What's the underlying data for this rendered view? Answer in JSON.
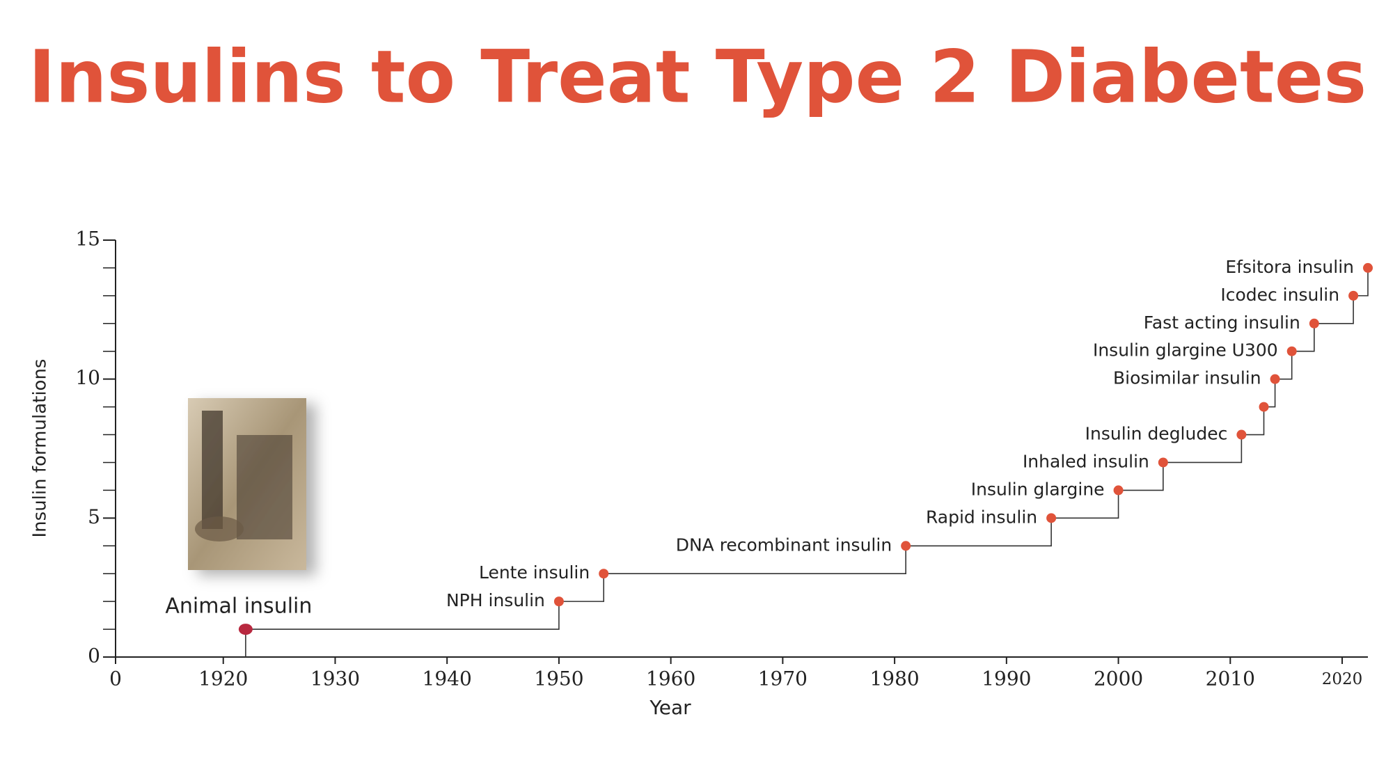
{
  "chart_data": {
    "type": "step",
    "title": "Insulins to Treat Type 2 Diabetes",
    "x_label": "Year",
    "y_label": "Insulin formulations",
    "color": "#e0533a",
    "first_color": "#b8283f",
    "x": [
      1922,
      1950,
      1954,
      1981,
      1994,
      2000,
      2004,
      2011,
      2013,
      2014,
      2015.5,
      2017.5,
      2021,
      2022.3
    ],
    "values": [
      1,
      2,
      3,
      4,
      5,
      6,
      7,
      8,
      9,
      10,
      11,
      12,
      13,
      14
    ],
    "point_labels": [
      "Animal insulin",
      "NPH insulin",
      "Lente insulin",
      "DNA recombinant insulin",
      "Rapid insulin",
      "Insulin glargine",
      "Inhaled insulin",
      "Insulin degludec",
      null,
      "Biosimilar insulin",
      "Insulin glargine U300",
      "Fast acting insulin",
      "Icodec insulin",
      "Efsitora insulin"
    ],
    "xlim": [
      1910,
      2022.3
    ],
    "xticks": [
      {
        "value": 1910,
        "label": "0"
      },
      1920,
      1930,
      1940,
      1950,
      1960,
      1970,
      1980,
      1990,
      2000,
      2010,
      2020
    ],
    "ylim": [
      0,
      15
    ],
    "yticks": [
      0,
      5,
      10,
      15
    ],
    "yminorticks": [
      1,
      2,
      3,
      4,
      6,
      7,
      8,
      9,
      11,
      12,
      13,
      14
    ]
  }
}
